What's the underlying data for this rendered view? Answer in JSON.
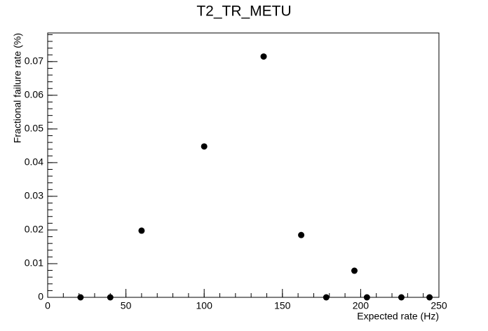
{
  "chart_data": {
    "type": "scatter",
    "title": "T2_TR_METU",
    "x_label": "Expected rate (Hz)",
    "y_label": "Fractional failure rate (%)",
    "x": [
      21,
      40,
      60,
      100,
      138,
      162,
      178,
      196,
      204,
      226,
      244
    ],
    "values": [
      0,
      0,
      0.0198,
      0.0448,
      0.0715,
      0.0185,
      0,
      0.0079,
      0,
      0,
      0
    ],
    "color": "#000000",
    "xlim": [
      0,
      250
    ],
    "xticks": [
      0,
      50,
      100,
      150,
      200,
      250
    ],
    "ylim": [
      0,
      0.0785
    ],
    "yticks": [
      0,
      0.01,
      0.02,
      0.03,
      0.04,
      0.05,
      0.06,
      0.07
    ],
    "grid": false
  }
}
